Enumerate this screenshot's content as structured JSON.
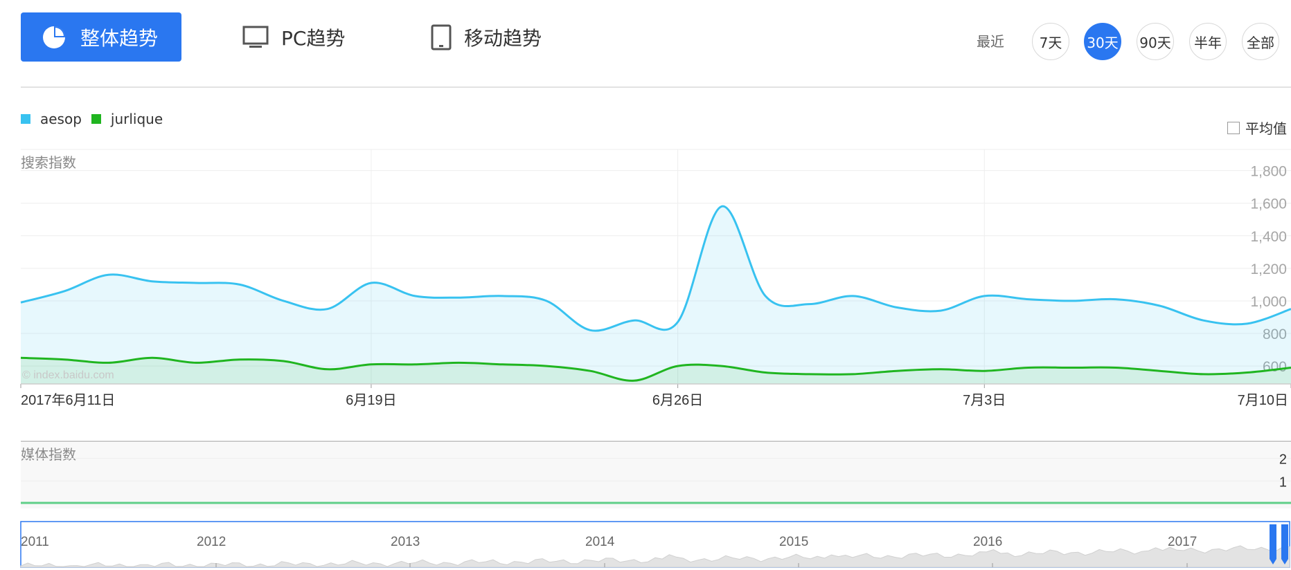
{
  "tabs": {
    "overall": "整体趋势",
    "pc": "PC趋势",
    "mobile": "移动趋势"
  },
  "range": {
    "label": "最近",
    "options": [
      "7天",
      "30天",
      "90天",
      "半年",
      "全部"
    ],
    "selected": "30天"
  },
  "avg_label": "平均值",
  "watermark": "© index.baidu.com",
  "colors": {
    "accent": "#2a77f0",
    "aesop": "#38c2f0",
    "jurlique": "#20b520"
  },
  "icons": {
    "overall": "pie-chart-icon",
    "pc": "monitor-icon",
    "mobile": "tablet-icon"
  },
  "chart_data": [
    {
      "type": "line",
      "title": "搜索指数",
      "fill": "area",
      "x_tick_labels": [
        "2017年6月11日",
        "6月19日",
        "6月26日",
        "7月3日",
        "7月10日"
      ],
      "y_tick_labels": [
        "600",
        "800",
        "1,000",
        "1,200",
        "1,400",
        "1,600",
        "1,800"
      ],
      "ylim": [
        490,
        1930
      ],
      "x": [
        "6-11",
        "6-12",
        "6-13",
        "6-14",
        "6-15",
        "6-16",
        "6-17",
        "6-18",
        "6-19",
        "6-20",
        "6-21",
        "6-22",
        "6-23",
        "6-24",
        "6-25",
        "6-26",
        "6-27",
        "6-28",
        "6-29",
        "6-30",
        "7-1",
        "7-2",
        "7-3",
        "7-4",
        "7-5",
        "7-6",
        "7-7",
        "7-8",
        "7-9",
        "7-10"
      ],
      "series": [
        {
          "name": "aesop",
          "values": [
            990,
            1060,
            1160,
            1120,
            1110,
            1100,
            1000,
            950,
            1110,
            1030,
            1020,
            1030,
            1000,
            820,
            880,
            870,
            1580,
            1030,
            980,
            1030,
            960,
            940,
            1030,
            1010,
            1000,
            1010,
            970,
            880,
            860,
            950
          ]
        },
        {
          "name": "jurlique",
          "values": [
            650,
            640,
            620,
            650,
            620,
            640,
            630,
            580,
            610,
            610,
            620,
            610,
            600,
            570,
            510,
            600,
            600,
            560,
            550,
            550,
            570,
            580,
            570,
            590,
            590,
            590,
            570,
            550,
            560,
            590
          ]
        }
      ],
      "grid": true,
      "legend": "top-left"
    },
    {
      "type": "line",
      "title": "媒体指数",
      "y_tick_labels": [
        "1",
        "2"
      ],
      "ylim": [
        0,
        2.2
      ],
      "series": [
        {
          "values": [
            0,
            0,
            0,
            0,
            0,
            0,
            0,
            0,
            0,
            0,
            0,
            0,
            0,
            0,
            0,
            0,
            0,
            0,
            0,
            0,
            0,
            0,
            0,
            0,
            0,
            0,
            0,
            0,
            0,
            0
          ]
        }
      ]
    },
    {
      "type": "area",
      "x_tick_labels": [
        "2011",
        "2012",
        "2013",
        "2014",
        "2015",
        "2016",
        "2017"
      ]
    }
  ]
}
